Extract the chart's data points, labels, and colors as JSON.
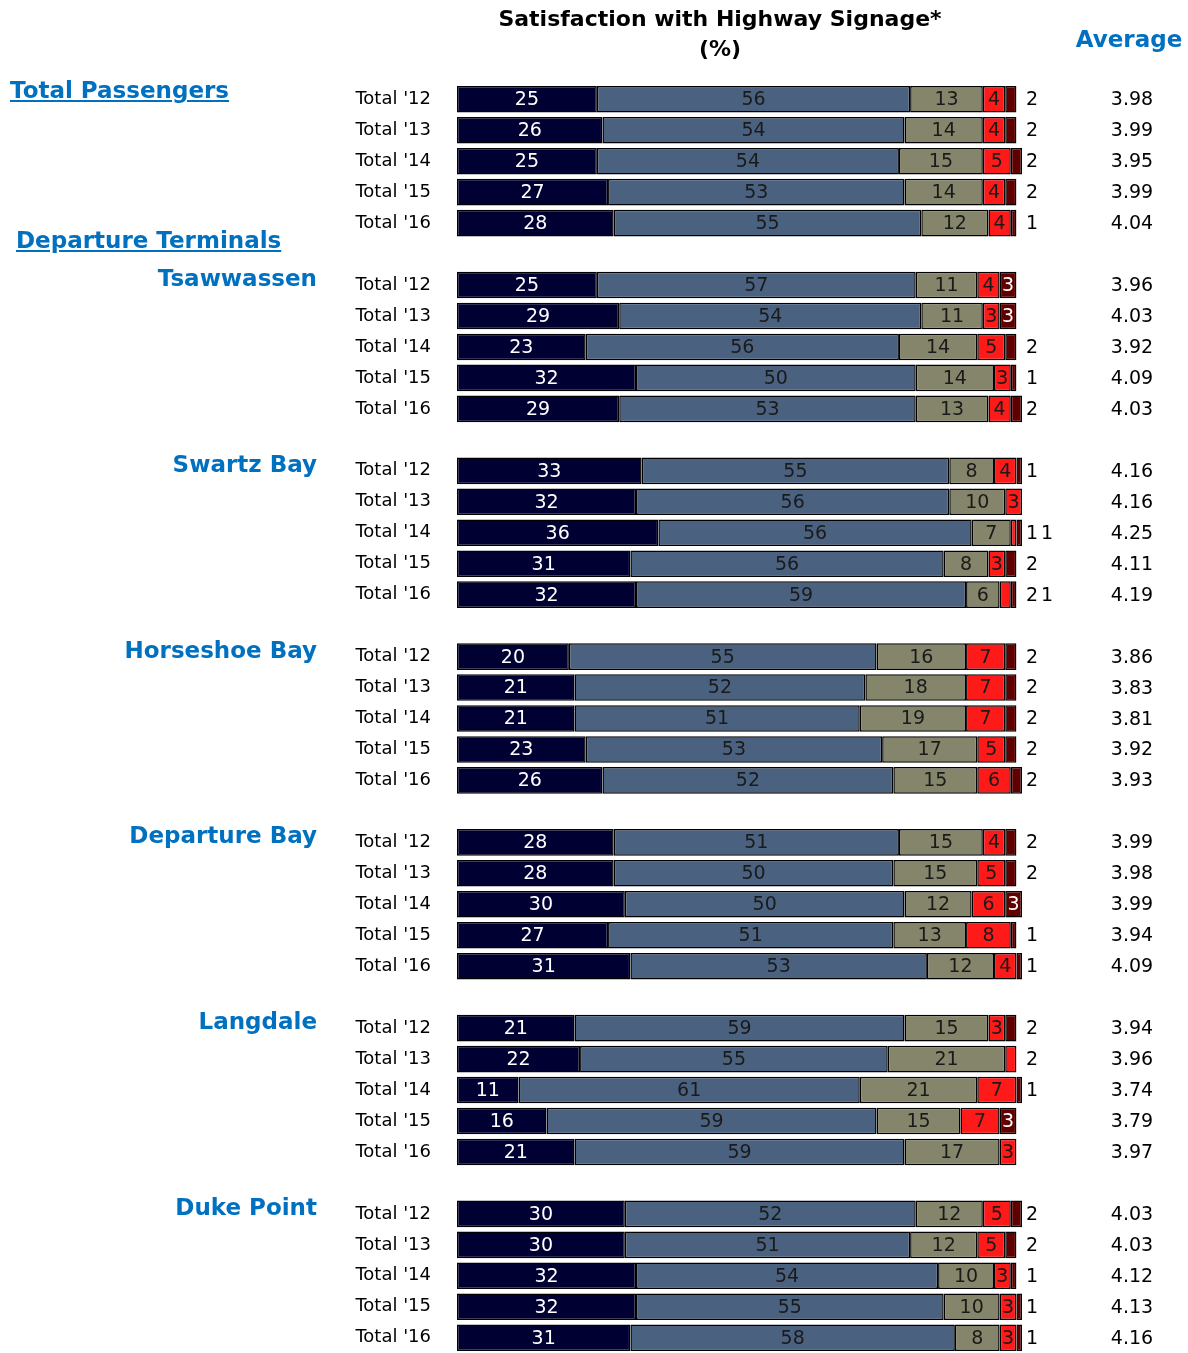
{
  "chart_data": [
    {
      "type": "bar",
      "orientation": "horizontal",
      "stacked": true,
      "data_labels": true,
      "title": "Satisfaction with Highway Signage*\n(%)",
      "annotations": [
        "Total Passengers",
        "Departure Terminals",
        "Tsawwassen",
        "Swartz Bay",
        "Horseshoe Bay",
        "Departure Bay",
        "Langdale",
        "Duke Point"
      ],
      "categories": [
        "Total '12",
        "Total '13",
        "Total '14",
        "Total '15",
        "Total '16",
        null,
        "Total '12",
        "Total '13",
        "Total '14",
        "Total '15",
        "Total '16",
        null,
        "Total '12",
        "Total '13",
        "Total '14",
        "Total '15",
        "Total '16",
        null,
        "Total '12",
        "Total '13",
        "Total '14",
        "Total '15",
        "Total '16",
        null,
        "Total '12",
        "Total '13",
        "Total '14",
        "Total '15",
        "Total '16",
        null,
        "Total '12",
        "Total '13",
        "Total '14",
        "Total '15",
        "Total '16",
        null,
        "Total '12",
        "Total '13",
        "Total '14",
        "Total '15",
        "Total '16"
      ],
      "series": [
        {
          "color": "#000033",
          "values": [
            25,
            26,
            25,
            27,
            28,
            null,
            25,
            29,
            23,
            32,
            29,
            null,
            33,
            32,
            36,
            31,
            32,
            null,
            20,
            21,
            21,
            23,
            26,
            null,
            28,
            28,
            30,
            27,
            31,
            null,
            21,
            22,
            11,
            16,
            21,
            null,
            30,
            30,
            32,
            32,
            31
          ]
        },
        {
          "color": "#4a6280",
          "values": [
            56,
            54,
            54,
            53,
            55,
            null,
            57,
            54,
            56,
            50,
            53,
            null,
            55,
            56,
            56,
            56,
            59,
            null,
            55,
            52,
            51,
            53,
            52,
            null,
            51,
            50,
            50,
            51,
            53,
            null,
            59,
            55,
            61,
            59,
            59,
            null,
            52,
            51,
            54,
            55,
            58
          ]
        },
        {
          "color": "#85856b",
          "values": [
            13,
            14,
            15,
            14,
            12,
            null,
            11,
            11,
            14,
            14,
            13,
            null,
            8,
            10,
            7,
            8,
            6,
            null,
            16,
            18,
            19,
            17,
            15,
            null,
            15,
            15,
            12,
            13,
            12,
            null,
            15,
            21,
            21,
            15,
            17,
            null,
            12,
            12,
            10,
            10,
            8
          ]
        },
        {
          "color": "#ff1a1a",
          "values": [
            4,
            4,
            5,
            4,
            4,
            null,
            4,
            3,
            5,
            3,
            4,
            null,
            4,
            3,
            1,
            3,
            2,
            null,
            7,
            7,
            7,
            5,
            6,
            null,
            4,
            5,
            6,
            8,
            4,
            null,
            3,
            2,
            7,
            7,
            3,
            null,
            5,
            5,
            3,
            3,
            3
          ]
        },
        {
          "color": "#600000",
          "values": [
            2,
            2,
            2,
            2,
            1,
            null,
            3,
            3,
            2,
            1,
            2,
            null,
            1,
            null,
            1,
            2,
            1,
            null,
            2,
            2,
            2,
            2,
            2,
            null,
            2,
            2,
            3,
            1,
            1,
            null,
            2,
            null,
            1,
            3,
            null,
            null,
            2,
            2,
            1,
            1,
            1
          ]
        }
      ]
    },
    {
      "type": "other",
      "title": "Average",
      "data_labels": true,
      "values": [
        3.98,
        3.99,
        3.95,
        3.99,
        4.04,
        3.96,
        4.03,
        3.92,
        4.09,
        4.03,
        4.16,
        4.16,
        4.25,
        4.11,
        4.19,
        3.86,
        3.83,
        3.81,
        3.92,
        3.93,
        3.99,
        3.98,
        3.99,
        3.94,
        4.09,
        3.94,
        3.96,
        3.74,
        3.79,
        3.97,
        4.03,
        4.03,
        4.12,
        4.13,
        4.16
      ]
    }
  ]
}
